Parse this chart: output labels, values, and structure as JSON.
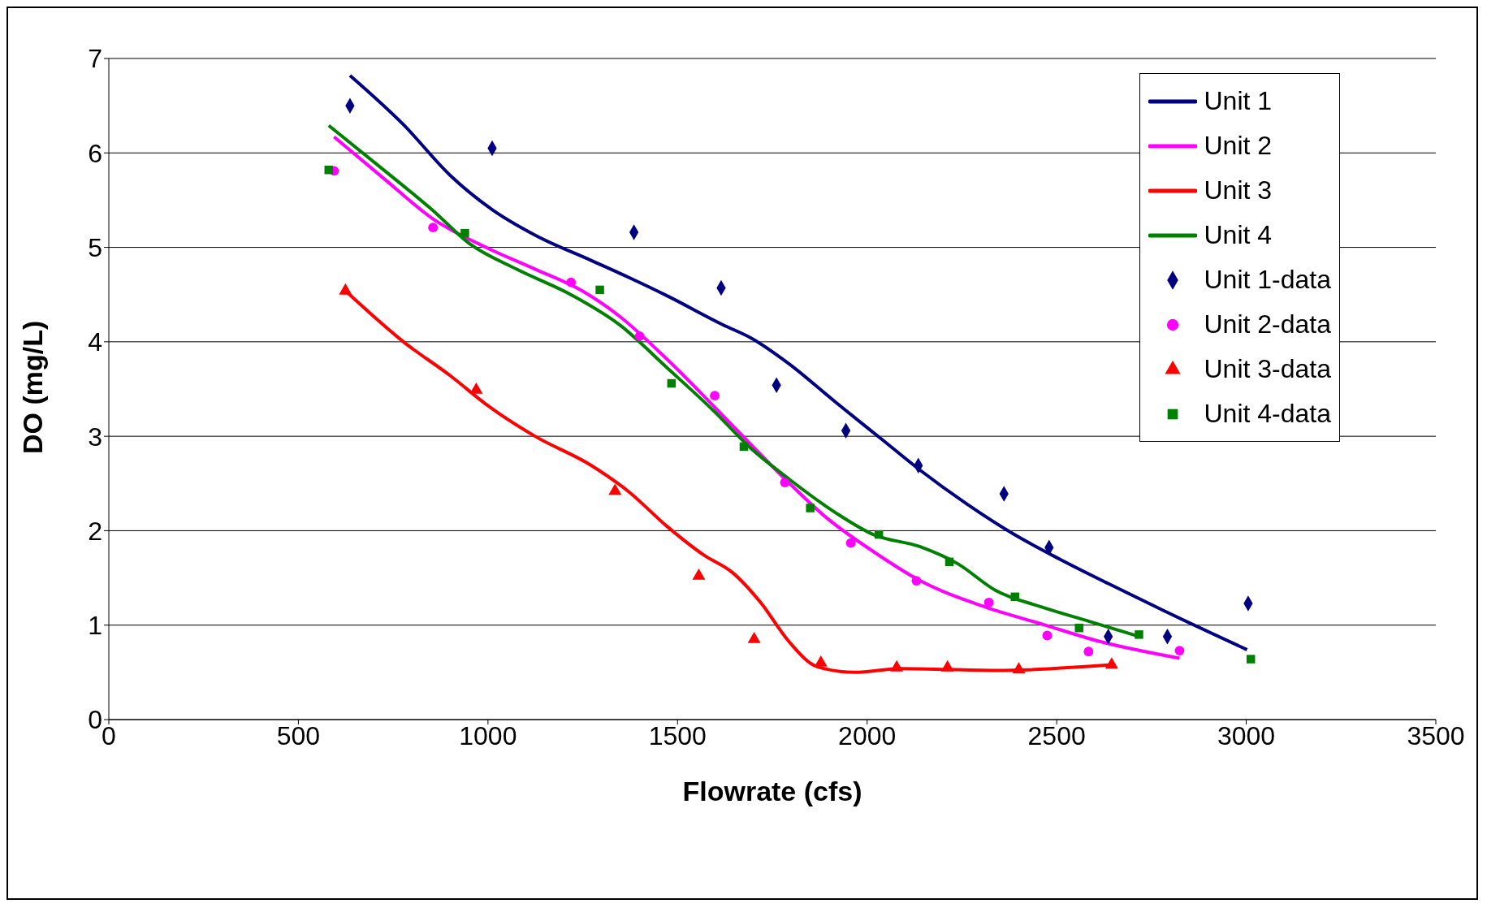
{
  "chart_data": {
    "type": "line",
    "xlabel": "Flowrate (cfs)",
    "ylabel": "DO (mg/L)",
    "xlim": [
      0,
      3500
    ],
    "xticks": [
      0,
      500,
      1000,
      1500,
      2000,
      2500,
      3000,
      3500
    ],
    "ylim": [
      0,
      7
    ],
    "yticks": [
      0,
      1,
      2,
      3,
      4,
      5,
      6,
      7
    ],
    "grid": "y",
    "legend": "top right",
    "series": [
      {
        "name": "Unit 1",
        "color": "#000080",
        "marker": "none",
        "x": [
          636,
          777,
          901,
          1011,
          1124,
          1273,
          1372,
          1471,
          1620,
          1694,
          1793,
          1917,
          2041,
          2140,
          2264,
          2388,
          2512,
          2636,
          2784,
          3002
        ],
        "values": [
          6.82,
          6.3,
          5.76,
          5.4,
          5.13,
          4.86,
          4.68,
          4.49,
          4.18,
          4.04,
          3.77,
          3.36,
          2.96,
          2.64,
          2.28,
          1.96,
          1.69,
          1.44,
          1.15,
          0.74
        ]
      },
      {
        "name": "Unit 2",
        "color": "#ff00ff",
        "marker": "none",
        "x": [
          594,
          728,
          852,
          1000,
          1124,
          1248,
          1347,
          1471,
          1595,
          1694,
          1793,
          1892,
          2016,
          2140,
          2313,
          2462,
          2611,
          2824
        ],
        "values": [
          6.17,
          5.72,
          5.31,
          4.99,
          4.77,
          4.54,
          4.27,
          3.82,
          3.32,
          2.91,
          2.51,
          2.14,
          1.78,
          1.47,
          1.19,
          1.01,
          0.83,
          0.65
        ]
      },
      {
        "name": "Unit 3",
        "color": "#ff0000",
        "marker": "none",
        "x": [
          624,
          777,
          901,
          1001,
          1124,
          1273,
          1372,
          1471,
          1570,
          1644,
          1719,
          1793,
          1868,
          1967,
          2091,
          2338,
          2645
        ],
        "values": [
          4.54,
          4.0,
          3.64,
          3.32,
          3.0,
          2.69,
          2.41,
          2.05,
          1.74,
          1.56,
          1.24,
          0.83,
          0.56,
          0.5,
          0.54,
          0.52,
          0.58
        ]
      },
      {
        "name": "Unit 4",
        "color": "#008000",
        "marker": "none",
        "x": [
          580,
          728,
          852,
          951,
          1075,
          1223,
          1347,
          1471,
          1595,
          1694,
          1793,
          1917,
          2016,
          2140,
          2239,
          2338,
          2462,
          2586,
          2717
        ],
        "values": [
          6.29,
          5.81,
          5.4,
          5.04,
          4.77,
          4.49,
          4.18,
          3.73,
          3.27,
          2.87,
          2.55,
          2.19,
          1.96,
          1.83,
          1.65,
          1.37,
          1.19,
          1.04,
          0.88
        ]
      },
      {
        "name": "Unit 1-data",
        "type": "scatter",
        "color": "#000080",
        "marker": "diamond",
        "x": [
          636,
          1011,
          1385,
          1615,
          1761,
          1944,
          2135,
          2361,
          2480,
          2636,
          2792,
          3005
        ],
        "values": [
          6.5,
          6.05,
          5.16,
          4.57,
          3.54,
          3.06,
          2.69,
          2.39,
          1.82,
          0.88,
          0.88,
          1.23
        ]
      },
      {
        "name": "Unit 2-data",
        "type": "scatter",
        "color": "#ff00ff",
        "marker": "circle",
        "x": [
          594,
          855,
          1219,
          1400,
          1598,
          1783,
          1957,
          2130,
          2321,
          2475,
          2584,
          2824
        ],
        "values": [
          5.81,
          5.21,
          4.63,
          4.06,
          3.43,
          2.51,
          1.87,
          1.47,
          1.24,
          0.89,
          0.72,
          0.73
        ]
      },
      {
        "name": "Unit 3-data",
        "type": "scatter",
        "color": "#ff0000",
        "marker": "triangle",
        "x": [
          624,
          969,
          1335,
          1556,
          1702,
          1878,
          2078,
          2212,
          2400,
          2645
        ],
        "values": [
          4.54,
          3.49,
          2.42,
          1.52,
          0.85,
          0.6,
          0.55,
          0.55,
          0.53,
          0.58
        ]
      },
      {
        "name": "Unit 4-data",
        "type": "scatter",
        "color": "#008000",
        "marker": "square",
        "x": [
          580,
          939,
          1295,
          1484,
          1675,
          1850,
          2031,
          2217,
          2390,
          2559,
          2717,
          3012
        ],
        "values": [
          5.82,
          5.15,
          4.55,
          3.56,
          2.89,
          2.24,
          1.96,
          1.67,
          1.3,
          0.97,
          0.9,
          0.64
        ]
      }
    ]
  }
}
